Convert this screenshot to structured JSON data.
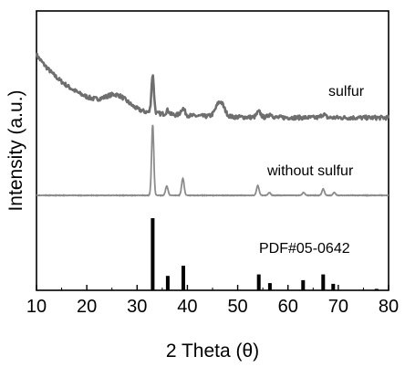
{
  "chart_data": {
    "type": "line",
    "title": "",
    "xlabel": "2 Theta (θ)",
    "ylabel": "Intensity (a.u.)",
    "xlim": [
      10,
      80
    ],
    "x_ticks": [
      10,
      20,
      30,
      40,
      50,
      60,
      70,
      80
    ],
    "y_ticks_shown": false,
    "colors": {
      "sulfur": "#6e6e6e",
      "without_sulfur": "#8c8c8c",
      "reference": "#000000",
      "axes": "#000000"
    },
    "series": [
      {
        "name": "sulfur",
        "label": "sulfur",
        "peaks": [
          {
            "x": 26.0,
            "h": 18,
            "w": 2.2
          },
          {
            "x": 33.1,
            "h": 55,
            "w": 0.25
          },
          {
            "x": 36.1,
            "h": 6,
            "w": 0.3
          },
          {
            "x": 39.1,
            "h": 10,
            "w": 0.4
          },
          {
            "x": 46.5,
            "h": 22,
            "w": 0.8
          },
          {
            "x": 54.2,
            "h": 8,
            "w": 0.4
          },
          {
            "x": 56.5,
            "h": 5,
            "w": 0.4
          },
          {
            "x": 67.0,
            "h": 5,
            "w": 0.4
          }
        ],
        "background": {
          "start": 100,
          "end": 8,
          "decay": 9
        }
      },
      {
        "name": "without sulfur",
        "label": "without sulfur",
        "peaks": [
          {
            "x": 33.1,
            "h": 100,
            "w": 0.22
          },
          {
            "x": 35.9,
            "h": 13,
            "w": 0.25
          },
          {
            "x": 39.1,
            "h": 24,
            "w": 0.25
          },
          {
            "x": 54.0,
            "h": 14,
            "w": 0.25
          },
          {
            "x": 56.3,
            "h": 4,
            "w": 0.25
          },
          {
            "x": 63.1,
            "h": 4,
            "w": 0.25
          },
          {
            "x": 67.0,
            "h": 9,
            "w": 0.25
          },
          {
            "x": 69.2,
            "h": 4,
            "w": 0.25
          }
        ],
        "baseline": 0
      },
      {
        "name": "PDF#05-0642",
        "label": "PDF#05-0642",
        "type": "stick",
        "x": [
          33.1,
          36.1,
          39.2,
          54.2,
          56.4,
          63.0,
          67.0,
          69.0,
          77.6
        ],
        "values": [
          100,
          20,
          34,
          22,
          10,
          14,
          22,
          9,
          2
        ]
      }
    ]
  }
}
